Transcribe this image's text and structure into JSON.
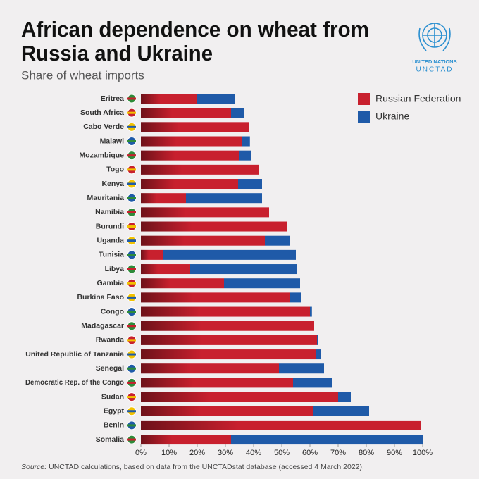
{
  "chart_data": {
    "type": "stacked_barh",
    "title": [
      "African dependence on wheat from",
      "Russia and Ukraine"
    ],
    "subtitle": "Share of wheat imports",
    "logo": {
      "line1": "UNITED NATIONS",
      "line2": "UNCTAD"
    },
    "source_label": "Source:",
    "source": "UNCTAD calculations, based on data from the UNCTADstat database (accessed 4 March 2022).",
    "categories": [
      "Eritrea",
      "South Africa",
      "Cabo Verde",
      "Malawi",
      "Mozambique",
      "Togo",
      "Kenya",
      "Mauritania",
      "Namibia",
      "Burundi",
      "Uganda",
      "Tunisia",
      "Libya",
      "Gambia",
      "Burkina Faso",
      "Congo",
      "Madagascar",
      "Rwanda",
      "United Republic of Tanzania",
      "Senegal",
      "Democratic Rep. of the Congo",
      "Sudan",
      "Egypt",
      "Benin",
      "Somalia"
    ],
    "series": [
      {
        "name": "Russian Federation",
        "color": "#c8202e",
        "values": [
          20,
          32,
          38.5,
          36,
          35,
          42,
          34.5,
          16,
          45.5,
          52,
          44,
          8,
          17.5,
          29.5,
          53,
          60,
          61.5,
          62.5,
          62,
          49,
          54,
          70,
          61,
          99.5,
          32
        ]
      },
      {
        "name": "Ukraine",
        "color": "#1f5aa8",
        "values": [
          13.5,
          4.5,
          0,
          2.7,
          4,
          0,
          8.5,
          27,
          0,
          0,
          9,
          47,
          38,
          27,
          4,
          0.7,
          0,
          0.3,
          2,
          16,
          14,
          4.5,
          20,
          0,
          68
        ]
      }
    ],
    "xlim": [
      0,
      100
    ],
    "xticks": [
      {
        "value": 0,
        "label": "0%"
      },
      {
        "value": 10,
        "label": "10%"
      },
      {
        "value": 20,
        "label": "20%"
      },
      {
        "value": 30,
        "label": "30%"
      },
      {
        "value": 40,
        "label": "40%"
      },
      {
        "value": 50,
        "label": "50%"
      },
      {
        "value": 60,
        "label": "60%"
      },
      {
        "value": 70,
        "label": "70%"
      },
      {
        "value": 80,
        "label": "80%"
      },
      {
        "value": 90,
        "label": "90%"
      },
      {
        "value": 100,
        "label": "100%"
      }
    ],
    "legend": "top-right"
  }
}
